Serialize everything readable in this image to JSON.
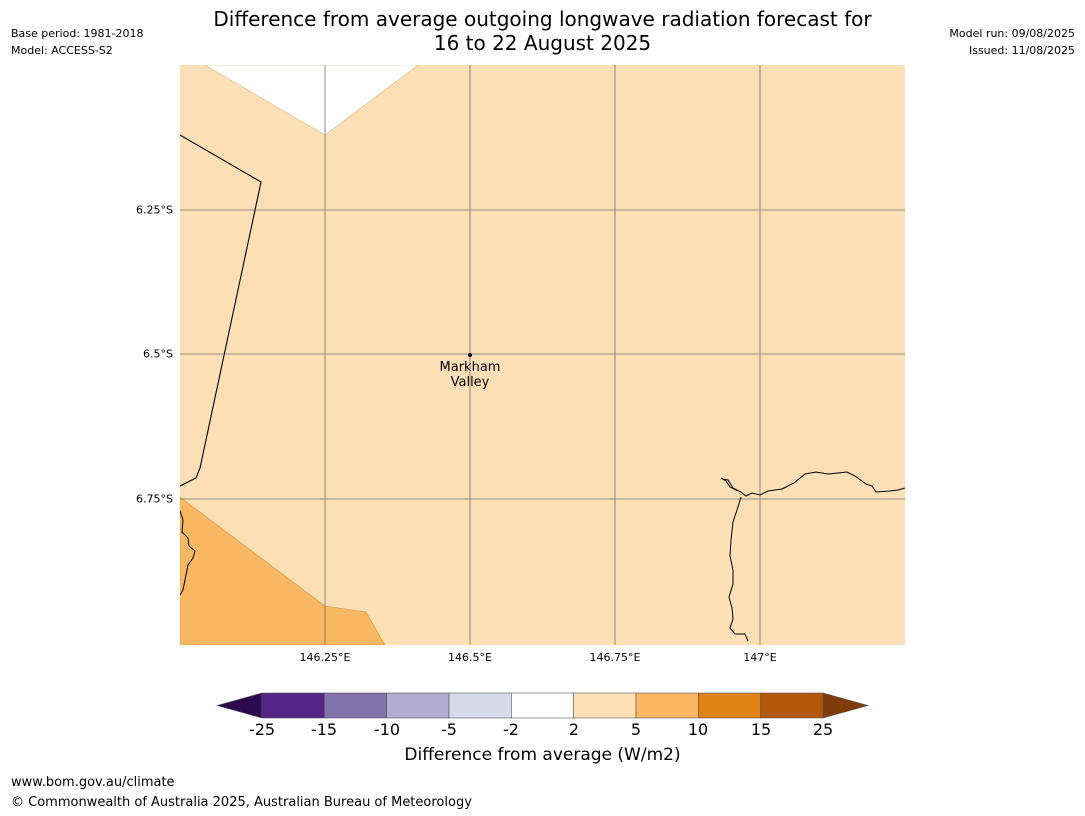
{
  "title": {
    "line1": "Difference from average outgoing longwave radiation forecast for",
    "line2": "16 to 22 August 2025"
  },
  "meta": {
    "base_period": "Base period: 1981-2018",
    "model": "Model: ACCESS-S2",
    "model_run": "Model run: 09/08/2025",
    "issued": "Issued: 11/08/2025"
  },
  "map": {
    "latitude_labels": [
      "6.25°S",
      "6.5°S",
      "6.75°S"
    ],
    "longitude_labels": [
      "146.25°E",
      "146.5°E",
      "146.75°E",
      "147°E"
    ],
    "place": {
      "line1": "Markham",
      "line2": "Valley"
    }
  },
  "colorbar": {
    "tick_labels": [
      "-25",
      "-15",
      "-10",
      "-5",
      "-2",
      "2",
      "5",
      "10",
      "15",
      "25"
    ],
    "colors": [
      "#2d0a4f",
      "#542388",
      "#8073ac",
      "#b2abd2",
      "#d8daeb",
      "#ffffff",
      "#fddfb5",
      "#fab762",
      "#e08214",
      "#b35806",
      "#7f3b08"
    ],
    "title": "Difference from average (W/m2)"
  },
  "footer": {
    "url": "www.bom.gov.au/climate",
    "copyright": "© Commonwealth of Australia 2025, Australian Bureau of Meteorology"
  }
}
